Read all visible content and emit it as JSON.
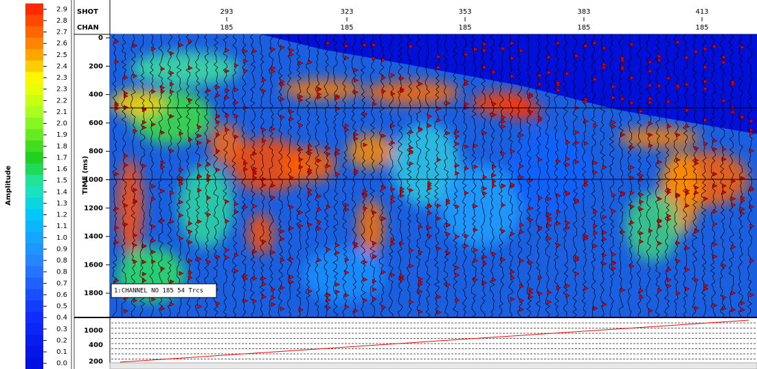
{
  "colorbar": {
    "title": "Amplitude",
    "labels": [
      "2.9",
      "2.8",
      "2.7",
      "2.6",
      "2.5",
      "2.4",
      "2.3",
      "2.3",
      "2.2",
      "2.1",
      "2.0",
      "1.9",
      "1.8",
      "1.7",
      "1.6",
      "1.5",
      "1.4",
      "1.3",
      "1.2",
      "1.1",
      "1.0",
      "0.9",
      "0.8",
      "0.8",
      "0.7",
      "0.6",
      "0.5",
      "0.4",
      "0.3",
      "0.2",
      "0.1",
      "0.0"
    ]
  },
  "header": {
    "shot_label": "SHOT",
    "chan_label": "CHAN",
    "shots": [
      "293",
      "323",
      "353",
      "383",
      "413"
    ],
    "chans": [
      "185",
      "185",
      "185",
      "185",
      "185"
    ]
  },
  "time_axis": {
    "title": "TIME (ms)",
    "ticks": [
      "0",
      "200",
      "400",
      "600",
      "800",
      "1000",
      "1200",
      "1400",
      "1600",
      "1800"
    ]
  },
  "lower_panel": {
    "ticks": [
      "1000",
      "400",
      "200"
    ]
  },
  "info_box": "1:CHANNEL NO 185 54 Trcs"
}
